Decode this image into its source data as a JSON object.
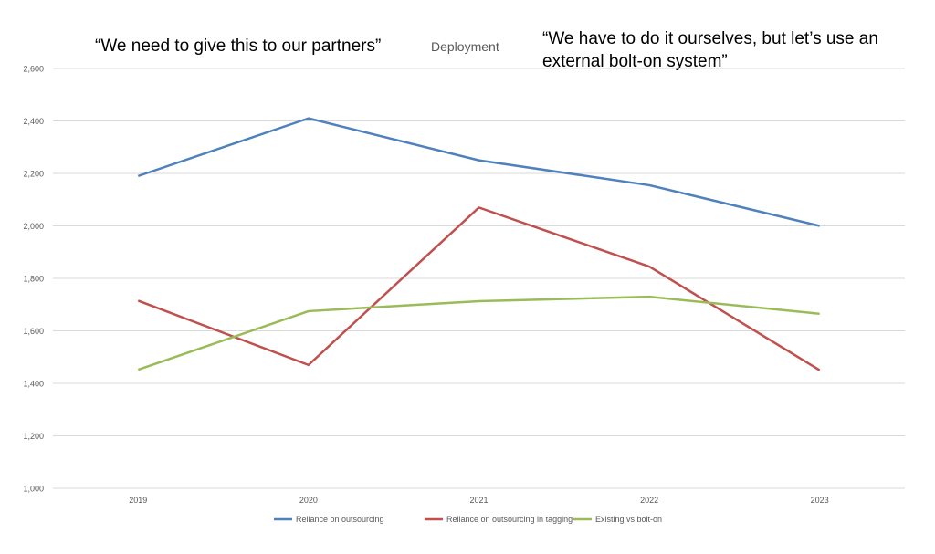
{
  "quotes": {
    "left": "“We need to give this to our partners”",
    "right": "“We have to do it ourselves, but let’s use an external bolt-on system”"
  },
  "colors": {
    "grid": "#d9d9d9",
    "axis_text": "#595959"
  },
  "chart_data": {
    "type": "line",
    "title": "Deployment",
    "xlabel": "",
    "ylabel": "",
    "categories": [
      "2019",
      "2020",
      "2021",
      "2022",
      "2023"
    ],
    "ylim": [
      1000,
      2600
    ],
    "yticks": [
      1000,
      1200,
      1400,
      1600,
      1800,
      2000,
      2200,
      2400,
      2600
    ],
    "ytick_labels": [
      "1,000",
      "1,200",
      "1,400",
      "1,600",
      "1,800",
      "2,000",
      "2,200",
      "2,400",
      "2,600"
    ],
    "grid": true,
    "legend_position": "bottom",
    "series": [
      {
        "name": "Reliance on outsourcing",
        "color": "#4f81bd",
        "values": [
          2190,
          2410,
          2250,
          2155,
          2000
        ]
      },
      {
        "name": "Reliance on outsourcing in tagging",
        "color": "#c0504d",
        "values": [
          1715,
          1470,
          2070,
          1845,
          1450
        ]
      },
      {
        "name": "Existing vs bolt-on",
        "color": "#9bbb59",
        "values": [
          1452,
          1675,
          1713,
          1730,
          1665
        ]
      }
    ]
  }
}
